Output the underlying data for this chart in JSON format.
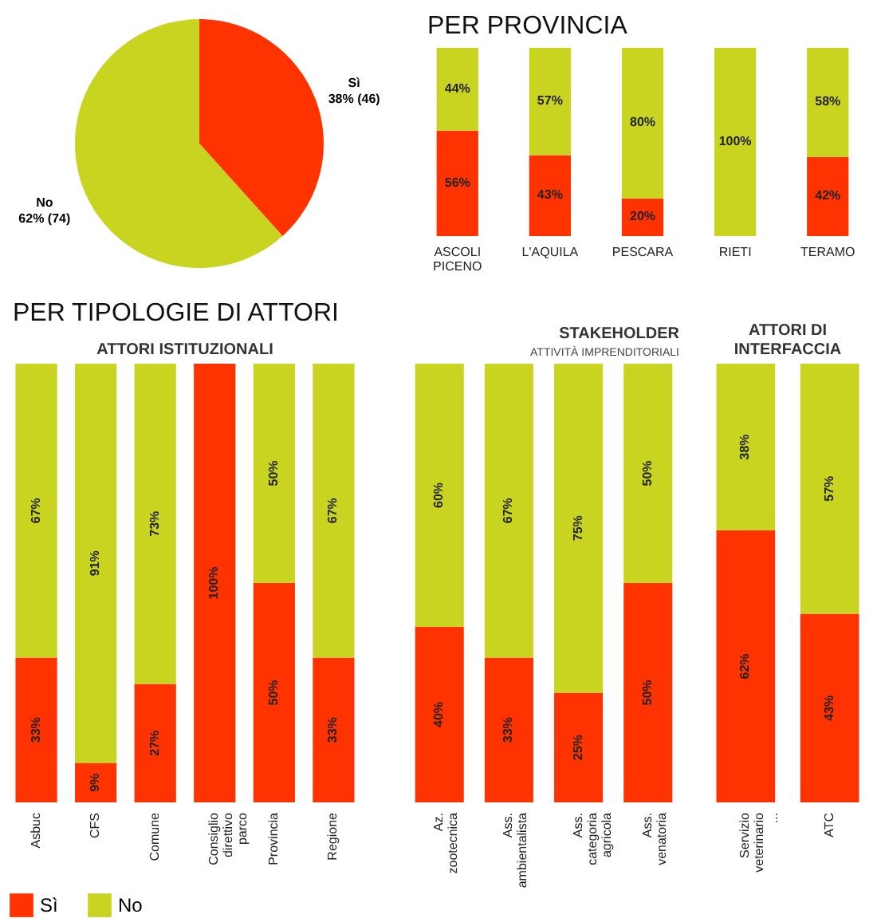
{
  "chart_data": [
    {
      "type": "pie",
      "categories": [
        "Sì",
        "No"
      ],
      "values": [
        46,
        74
      ],
      "colors": [
        "#ff3300",
        "#c9d420"
      ],
      "value_labels": [
        "38% (46)",
        "62% (74)"
      ]
    },
    {
      "type": "bar",
      "title": "PER PROVINCIA",
      "stacked": true,
      "categories": [
        "ASCOLI PICENO",
        "L'AQUILA",
        "PESCARA",
        "RIETI",
        "TERAMO"
      ],
      "series": [
        {
          "color": "#ff3300",
          "values": [
            56,
            43,
            20,
            0,
            42
          ],
          "value_labels": [
            "56%",
            "43%",
            "20%",
            null,
            "42%"
          ]
        },
        {
          "color": "#c9d420",
          "values": [
            44,
            57,
            80,
            100,
            58
          ],
          "value_labels": [
            "44%",
            "57%",
            "80%",
            "100%",
            "58%"
          ]
        }
      ]
    },
    {
      "type": "bar",
      "title": "PER TIPOLOGIE DI ATTORI",
      "subtitle": "ATTORI ISTITUZIONALI",
      "stacked": true,
      "legend": "bottom",
      "categories": [
        "Asbuc",
        "CFS",
        "Comune",
        "Consiglio direttivo parco",
        "Provincia",
        "Regione"
      ],
      "series": [
        {
          "name": "Sì",
          "color": "#ff3300",
          "values": [
            33,
            9,
            27,
            100,
            50,
            33
          ],
          "value_labels": [
            "33%",
            "9%",
            "27%",
            "100%",
            "50%",
            "33%"
          ]
        },
        {
          "name": "No",
          "color": "#c9d420",
          "values": [
            67,
            91,
            73,
            0,
            50,
            67
          ],
          "value_labels": [
            "67%",
            "91%",
            "73%",
            null,
            "50%",
            "67%"
          ]
        }
      ]
    },
    {
      "type": "bar",
      "subtitle": "STAKEHOLDER",
      "annotations": [
        "ATTIVITÀ IMPRENDITORIALI"
      ],
      "stacked": true,
      "categories": [
        "Az. zootecnica",
        "Ass. ambientalista",
        "Ass. categoria agricola",
        "Ass. venatoria"
      ],
      "series": [
        {
          "color": "#ff3300",
          "values": [
            40,
            33,
            25,
            50
          ],
          "value_labels": [
            "40%",
            "33%",
            "25%",
            "50%"
          ]
        },
        {
          "color": "#c9d420",
          "values": [
            60,
            67,
            75,
            50
          ],
          "value_labels": [
            "60%",
            "67%",
            "75%",
            "50%"
          ]
        }
      ]
    },
    {
      "type": "bar",
      "subtitle": "ATTORI DI INTERFACCIA",
      "stacked": true,
      "categories": [
        "Servizio veterinario ...",
        "ATC"
      ],
      "series": [
        {
          "color": "#ff3300",
          "values": [
            62,
            43
          ],
          "value_labels": [
            "62%",
            "43%"
          ]
        },
        {
          "color": "#c9d420",
          "values": [
            38,
            57
          ],
          "value_labels": [
            "38%",
            "57%"
          ]
        }
      ]
    }
  ]
}
